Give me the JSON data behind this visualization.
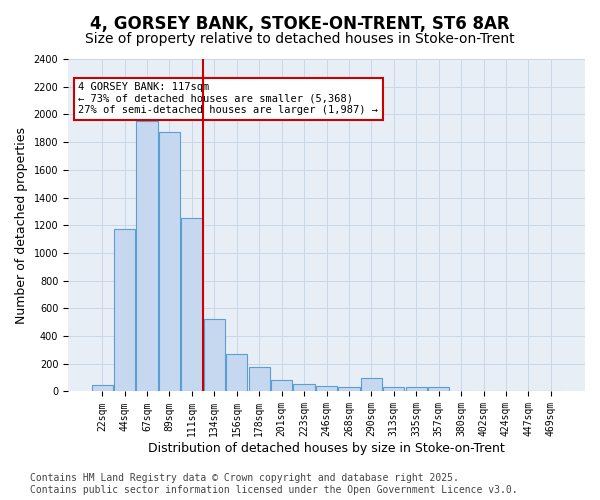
{
  "title_line1": "4, GORSEY BANK, STOKE-ON-TRENT, ST6 8AR",
  "title_line2": "Size of property relative to detached houses in Stoke-on-Trent",
  "xlabel": "Distribution of detached houses by size in Stoke-on-Trent",
  "ylabel": "Number of detached properties",
  "categories": [
    "22sqm",
    "44sqm",
    "67sqm",
    "89sqm",
    "111sqm",
    "134sqm",
    "156sqm",
    "178sqm",
    "201sqm",
    "223sqm",
    "246sqm",
    "268sqm",
    "290sqm",
    "313sqm",
    "335sqm",
    "357sqm",
    "380sqm",
    "402sqm",
    "424sqm",
    "447sqm",
    "469sqm"
  ],
  "values": [
    50,
    1175,
    1950,
    1875,
    1250,
    525,
    270,
    175,
    80,
    55,
    40,
    35,
    100,
    30,
    30,
    30,
    5,
    5,
    5,
    5,
    5
  ],
  "bar_color": "#c5d8f0",
  "bar_edge_color": "#5a9fd4",
  "bar_linewidth": 0.8,
  "vline_x_index": 4.5,
  "vline_color": "#cc0000",
  "annotation_text": "4 GORSEY BANK: 117sqm\n← 73% of detached houses are smaller (5,368)\n27% of semi-detached houses are larger (1,987) →",
  "annotation_box_color": "#cc0000",
  "ylim": [
    0,
    2400
  ],
  "yticks": [
    0,
    200,
    400,
    600,
    800,
    1000,
    1200,
    1400,
    1600,
    1800,
    2000,
    2200,
    2400
  ],
  "grid_color": "#c8d8e8",
  "bg_color": "#e8eef5",
  "footer_line1": "Contains HM Land Registry data © Crown copyright and database right 2025.",
  "footer_line2": "Contains public sector information licensed under the Open Government Licence v3.0.",
  "title_fontsize": 12,
  "subtitle_fontsize": 10,
  "tick_fontsize": 7,
  "label_fontsize": 9,
  "footer_fontsize": 7
}
